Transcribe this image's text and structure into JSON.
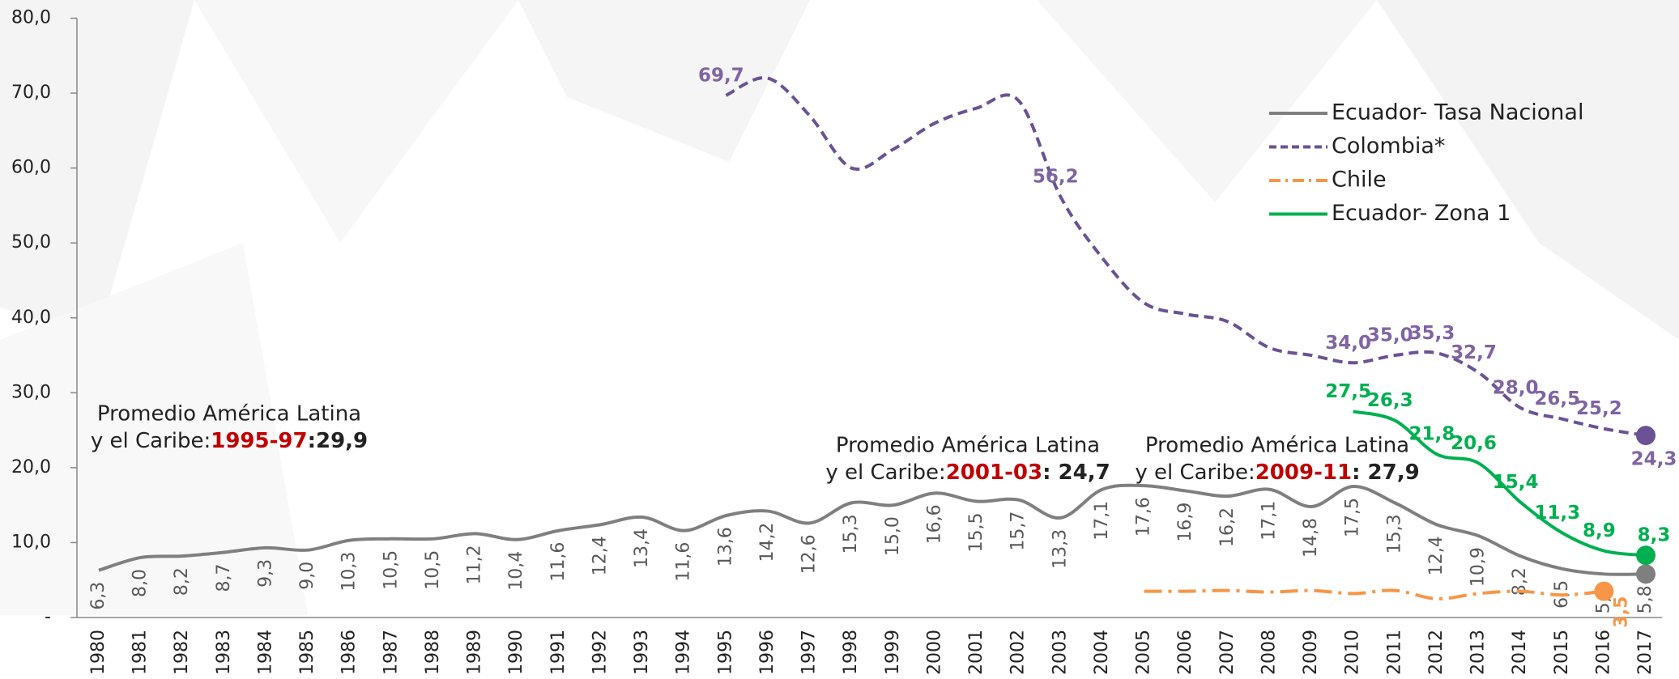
{
  "chart_data": {
    "type": "line",
    "categories": [
      "1980",
      "1981",
      "1982",
      "1983",
      "1984",
      "1985",
      "1986",
      "1987",
      "1988",
      "1989",
      "1990",
      "1991",
      "1992",
      "1993",
      "1994",
      "1995",
      "1996",
      "1997",
      "1998",
      "1999",
      "2000",
      "2001",
      "2002",
      "2003",
      "2004",
      "2005",
      "2006",
      "2007",
      "2008",
      "2009",
      "2010",
      "2011",
      "2012",
      "2013",
      "2014",
      "2015",
      "2016",
      "2017"
    ],
    "ylim": [
      0,
      80
    ],
    "yticks": [
      {
        "value": 0,
        "label": "-"
      },
      {
        "value": 10,
        "label": "10,0"
      },
      {
        "value": 20,
        "label": "20,0"
      },
      {
        "value": 30,
        "label": "30,0"
      },
      {
        "value": 40,
        "label": "40,0"
      },
      {
        "value": 50,
        "label": "50,0"
      },
      {
        "value": 60,
        "label": "60,0"
      },
      {
        "value": 70,
        "label": "70,0"
      },
      {
        "value": 80,
        "label": "80,0"
      }
    ],
    "legend": "upper right",
    "series": [
      {
        "name": "Ecuador- Tasa Nacional",
        "color": "#7f7f7f",
        "dash": "solid",
        "label_color": "#595959",
        "values": [
          6.3,
          8.0,
          8.2,
          8.7,
          9.3,
          9.0,
          10.3,
          10.5,
          10.5,
          11.2,
          10.4,
          11.6,
          12.4,
          13.4,
          11.6,
          13.6,
          14.2,
          12.6,
          15.3,
          15.0,
          16.6,
          15.5,
          15.7,
          13.3,
          17.1,
          17.6,
          16.9,
          16.2,
          17.1,
          14.8,
          17.5,
          15.3,
          12.4,
          10.9,
          8.2,
          6.5,
          5.8,
          5.8
        ],
        "value_labels": [
          "6,3",
          "8,0",
          "8,2",
          "8,7",
          "9,3",
          "9,0",
          "10,3",
          "10,5",
          "10,5",
          "11,2",
          "10,4",
          "11,6",
          "12,4",
          "13,4",
          "11,6",
          "13,6",
          "14,2",
          "12,6",
          "15,3",
          "15,0",
          "16,6",
          "15,5",
          "15,7",
          "13,3",
          "17,1",
          "17,6",
          "16,9",
          "16,2",
          "17,1",
          "14,8",
          "17,5",
          "15,3",
          "12,4",
          "10,9",
          "8,2",
          "6,5",
          "5,8",
          "5,8"
        ]
      },
      {
        "name": "Colombia*",
        "color": "#6a5294",
        "dash": "dashed",
        "label_color": "#8064a2",
        "values": [
          null,
          null,
          null,
          null,
          null,
          null,
          null,
          null,
          null,
          null,
          null,
          null,
          null,
          null,
          null,
          69.7,
          72,
          67,
          60,
          62.5,
          66,
          68,
          69,
          56.2,
          48,
          42,
          40.5,
          39.5,
          36,
          35,
          34.0,
          35.0,
          35.3,
          32.7,
          28.0,
          26.5,
          25.2,
          24.3
        ],
        "value_labels": [
          null,
          null,
          null,
          null,
          null,
          null,
          null,
          null,
          null,
          null,
          null,
          null,
          null,
          null,
          null,
          "69,7",
          null,
          null,
          null,
          null,
          null,
          null,
          null,
          "56,2",
          null,
          null,
          null,
          null,
          null,
          null,
          "34,0",
          "35,0",
          "35,3",
          "32,7",
          "28,0",
          "26,5",
          "25,2",
          "24,3"
        ]
      },
      {
        "name": "Chile",
        "color": "#f79646",
        "dash": "dashdot",
        "label_color": "#f79646",
        "values": [
          null,
          null,
          null,
          null,
          null,
          null,
          null,
          null,
          null,
          null,
          null,
          null,
          null,
          null,
          null,
          null,
          null,
          null,
          null,
          null,
          null,
          null,
          null,
          null,
          null,
          3.5,
          3.5,
          3.6,
          3.4,
          3.6,
          3.2,
          3.6,
          2.5,
          3.2,
          3.5,
          3.0,
          3.5,
          null
        ],
        "value_labels": [
          null,
          null,
          null,
          null,
          null,
          null,
          null,
          null,
          null,
          null,
          null,
          null,
          null,
          null,
          null,
          null,
          null,
          null,
          null,
          null,
          null,
          null,
          null,
          null,
          null,
          null,
          null,
          null,
          null,
          null,
          null,
          null,
          null,
          null,
          null,
          null,
          "3,5",
          null
        ]
      },
      {
        "name": "Ecuador- Zona 1",
        "color": "#00b050",
        "dash": "solid",
        "label_color": "#00b050",
        "values": [
          null,
          null,
          null,
          null,
          null,
          null,
          null,
          null,
          null,
          null,
          null,
          null,
          null,
          null,
          null,
          null,
          null,
          null,
          null,
          null,
          null,
          null,
          null,
          null,
          null,
          null,
          null,
          null,
          null,
          null,
          27.5,
          26.3,
          21.8,
          20.6,
          15.4,
          11.3,
          8.9,
          8.3
        ],
        "value_labels": [
          null,
          null,
          null,
          null,
          null,
          null,
          null,
          null,
          null,
          null,
          null,
          null,
          null,
          null,
          null,
          null,
          null,
          null,
          null,
          null,
          null,
          null,
          null,
          null,
          null,
          null,
          null,
          null,
          null,
          null,
          "27,5",
          "26,3",
          "21,8",
          "20,6",
          "15,4",
          "11,3",
          "8,9",
          "8,3"
        ]
      }
    ],
    "annotations": [
      {
        "line1": "Promedio América Latina",
        "prefix": "y el Caribe:",
        "period": "1995-97",
        "sep": ":",
        "value": "29,9"
      },
      {
        "line1": "Promedio América Latina",
        "prefix": "y el Caribe:",
        "period": "2001-03",
        "sep": ": ",
        "value": "24,7"
      },
      {
        "line1": "Promedio América Latina",
        "prefix": "y el Caribe:",
        "period": "2009-11",
        "sep": ": ",
        "value": "27,9"
      }
    ]
  }
}
